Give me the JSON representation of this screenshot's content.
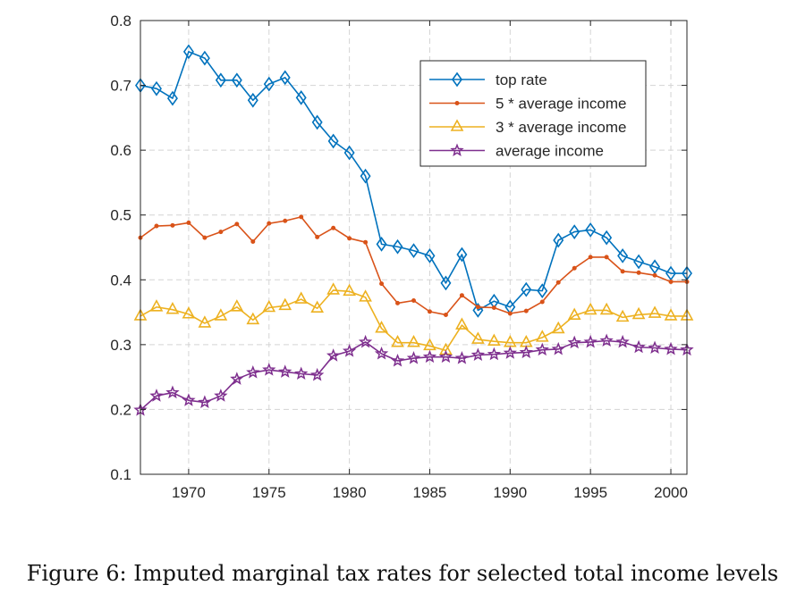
{
  "caption": "Figure 6: Imputed marginal tax rates for selected total income levels",
  "chart_data": {
    "type": "line",
    "title": "",
    "xlabel": "",
    "ylabel": "",
    "xlim": [
      1967,
      2001
    ],
    "ylim": [
      0.1,
      0.8
    ],
    "grid": true,
    "legend_position": "top-right",
    "x_ticks": [
      "1970",
      "1975",
      "1980",
      "1985",
      "1990",
      "1995",
      "2000"
    ],
    "y_ticks": [
      "0.1",
      "0.2",
      "0.3",
      "0.4",
      "0.5",
      "0.6",
      "0.7",
      "0.8"
    ],
    "x": [
      1967,
      1968,
      1969,
      1970,
      1971,
      1972,
      1973,
      1974,
      1975,
      1976,
      1977,
      1978,
      1979,
      1980,
      1981,
      1982,
      1983,
      1984,
      1985,
      1986,
      1987,
      1988,
      1989,
      1990,
      1991,
      1992,
      1993,
      1994,
      1995,
      1996,
      1997,
      1998,
      1999,
      2000,
      2001
    ],
    "series": [
      {
        "name": "top rate",
        "color": "#0072BD",
        "marker": "diamond",
        "values": [
          0.7,
          0.695,
          0.68,
          0.752,
          0.742,
          0.708,
          0.708,
          0.677,
          0.702,
          0.712,
          0.681,
          0.643,
          0.614,
          0.596,
          0.56,
          0.455,
          0.451,
          0.445,
          0.437,
          0.395,
          0.439,
          0.353,
          0.367,
          0.358,
          0.385,
          0.383,
          0.461,
          0.474,
          0.477,
          0.465,
          0.437,
          0.428,
          0.42,
          0.41,
          0.41
        ]
      },
      {
        "name": "5 * average income",
        "color": "#D95319",
        "marker": "dot",
        "values": [
          0.465,
          0.483,
          0.484,
          0.488,
          0.465,
          0.474,
          0.486,
          0.459,
          0.487,
          0.491,
          0.497,
          0.466,
          0.48,
          0.464,
          0.458,
          0.394,
          0.364,
          0.368,
          0.351,
          0.346,
          0.376,
          0.358,
          0.357,
          0.348,
          0.352,
          0.366,
          0.396,
          0.418,
          0.435,
          0.435,
          0.413,
          0.411,
          0.407,
          0.397,
          0.397
        ]
      },
      {
        "name": "3 * average income",
        "color": "#EDB120",
        "marker": "triangle",
        "values": [
          0.344,
          0.358,
          0.354,
          0.347,
          0.333,
          0.344,
          0.358,
          0.338,
          0.357,
          0.36,
          0.37,
          0.356,
          0.384,
          0.382,
          0.373,
          0.325,
          0.303,
          0.303,
          0.298,
          0.291,
          0.33,
          0.308,
          0.305,
          0.303,
          0.303,
          0.311,
          0.324,
          0.345,
          0.353,
          0.353,
          0.342,
          0.346,
          0.348,
          0.344,
          0.344
        ]
      },
      {
        "name": "average income",
        "color": "#7E2F8E",
        "marker": "star",
        "values": [
          0.199,
          0.221,
          0.226,
          0.214,
          0.211,
          0.221,
          0.247,
          0.257,
          0.261,
          0.258,
          0.255,
          0.253,
          0.283,
          0.29,
          0.304,
          0.286,
          0.275,
          0.279,
          0.281,
          0.281,
          0.279,
          0.284,
          0.285,
          0.287,
          0.288,
          0.292,
          0.293,
          0.303,
          0.304,
          0.306,
          0.304,
          0.296,
          0.295,
          0.293,
          0.292
        ]
      }
    ]
  }
}
